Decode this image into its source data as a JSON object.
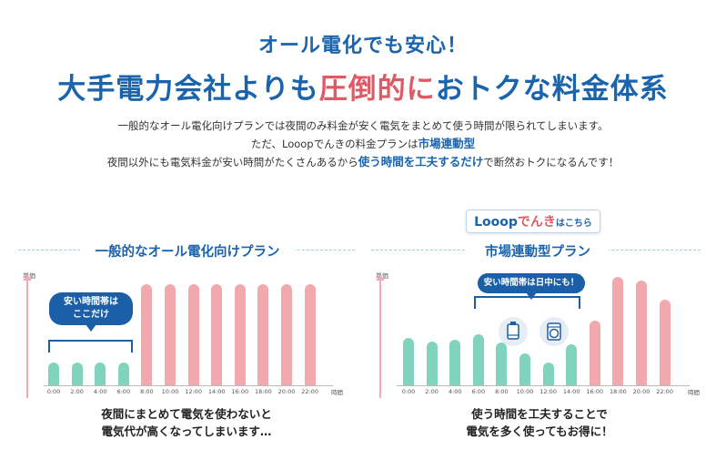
{
  "hero": {
    "kicker": "オール電化でも安心！",
    "headline_pre": "大手電力会社よりも",
    "headline_accent": "圧倒的に",
    "headline_post": "おトクな料金体系",
    "line1": "一般的なオール電化向けプランでは夜間のみ料金が安く電気をまとめて使う時間が限られてしまいます。",
    "line2_pre": "ただ、Looopでんきの料金プランは",
    "line2_hl": "市場連動型",
    "line3_pre": "夜間以外にも電気料金が安い時間がたくさんあるから",
    "line3_hl": "使う時間を工夫するだけ",
    "line3_post": "で断然おトクになるんです！"
  },
  "logo_button": {
    "brand": "Looop",
    "brand_red": "でんき",
    "suffix": "はこちら"
  },
  "left": {
    "title": "一般的なオール電化向けプラン",
    "y_label": "単価",
    "x_label": "時間",
    "bubble": [
      "安い時間帯は",
      "ここだけ"
    ],
    "caption": [
      "夜間にまとめて電気を使わないと",
      "電気代が高くなってしまいます…"
    ]
  },
  "right": {
    "title": "市場連動型プラン",
    "y_label": "単価",
    "x_label": "時間",
    "bubble": "安い時間帯は日中にも！",
    "caption": [
      "使う時間を工夫することで",
      "電気を多く使ってもお得に！"
    ]
  },
  "chart_data": [
    {
      "type": "bar",
      "title": "一般的なオール電化向けプラン",
      "xlabel": "時間",
      "ylabel": "単価",
      "categories": [
        "0:00",
        "2:00",
        "4:00",
        "6:00",
        "8:00",
        "10:00",
        "12:00",
        "14:00",
        "16:00",
        "18:00",
        "20:00",
        "22:00"
      ],
      "values": [
        24,
        24,
        24,
        24,
        107,
        107,
        107,
        107,
        107,
        107,
        107,
        107
      ],
      "cheap": [
        true,
        true,
        true,
        true,
        false,
        false,
        false,
        false,
        false,
        false,
        false,
        false
      ],
      "ylim": [
        0,
        120
      ]
    },
    {
      "type": "bar",
      "title": "市場連動型プラン",
      "xlabel": "時間",
      "ylabel": "単価",
      "categories": [
        "0:00",
        "2:00",
        "4:00",
        "6:00",
        "8:00",
        "10:00",
        "12:00",
        "14:00",
        "16:00",
        "18:00",
        "20:00",
        "22:00"
      ],
      "values": [
        50,
        46,
        48,
        54,
        45,
        34,
        24,
        43,
        68,
        114,
        110,
        90
      ],
      "cheap": [
        true,
        true,
        true,
        true,
        true,
        true,
        true,
        true,
        false,
        false,
        false,
        false
      ],
      "ylim": [
        0,
        120
      ]
    }
  ],
  "colors": {
    "cheap": "#80d4bd",
    "expensive": "#f2a9ae",
    "accent": "#1a63ad",
    "red": "#e05a66"
  },
  "icons": [
    "dryer-icon",
    "washing-machine-icon"
  ]
}
